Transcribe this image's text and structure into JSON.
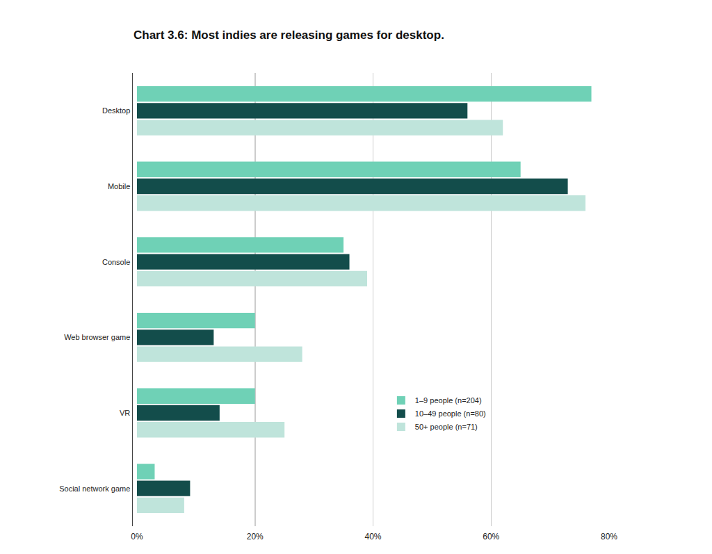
{
  "chart_data": {
    "type": "bar",
    "orientation": "horizontal",
    "title": "Chart 3.6: Most indies are releasing games for desktop.",
    "categories": [
      "Desktop",
      "Mobile",
      "Console",
      "Web browser game",
      "VR",
      "Social network game"
    ],
    "series": [
      {
        "name": "1–9 people (n=204)",
        "color": "#6fd1b6",
        "values": [
          77,
          65,
          35,
          20,
          20,
          3
        ]
      },
      {
        "name": "10–49 people (n=80)",
        "color": "#134d4b",
        "values": [
          56,
          73,
          36,
          13,
          14,
          9
        ]
      },
      {
        "name": "50+ people (n=71)",
        "color": "#bfe4db",
        "values": [
          62,
          76,
          39,
          28,
          25,
          8
        ]
      }
    ],
    "xlim": [
      0,
      80
    ],
    "xticks": [
      {
        "value": 0,
        "label": "0%"
      },
      {
        "value": 20,
        "label": "20%"
      },
      {
        "value": 40,
        "label": "40%"
      },
      {
        "value": 60,
        "label": "60%"
      },
      {
        "value": 80,
        "label": "80%"
      }
    ],
    "grid": true,
    "legend": "right"
  }
}
